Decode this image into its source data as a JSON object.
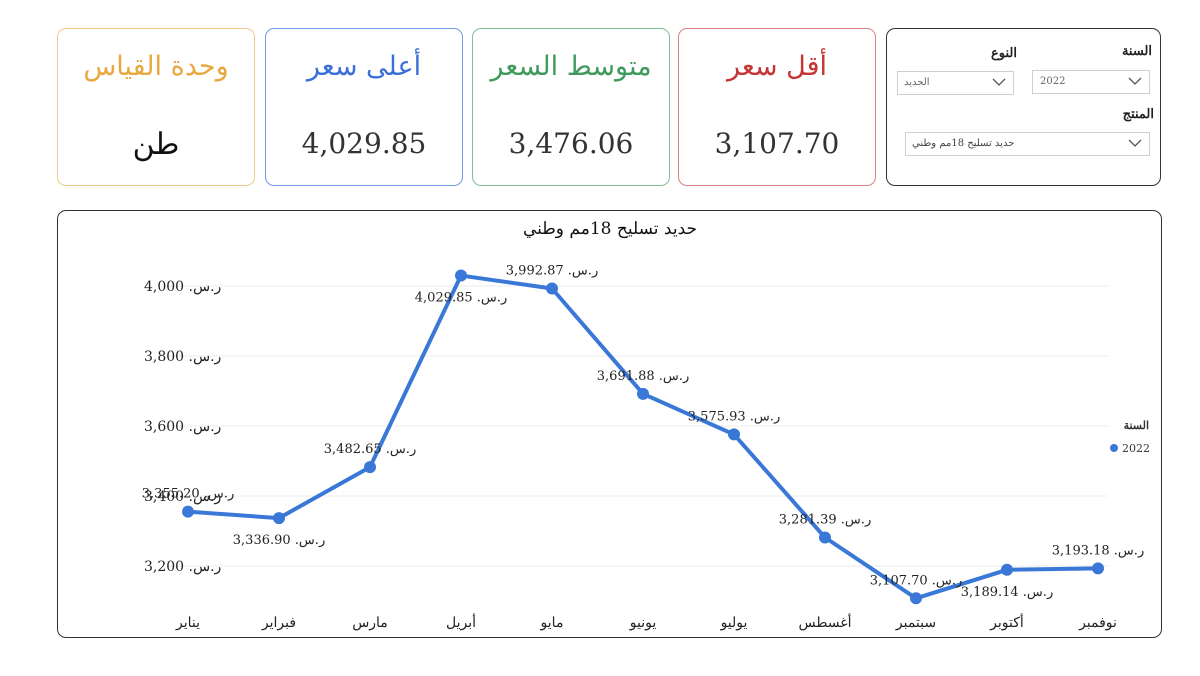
{
  "cards": {
    "unit": {
      "title": "وحدة القياس",
      "value": "طن",
      "color": "#e8a840"
    },
    "max": {
      "title": "أعلى سعر",
      "value": "4,029.85",
      "color": "#3a6fd8"
    },
    "avg": {
      "title": "متوسط السعر",
      "value": "3,476.06",
      "color": "#3f9a5c"
    },
    "min": {
      "title": "أقل سعر",
      "value": "3,107.70",
      "color": "#c43535"
    }
  },
  "filters": {
    "year_label": "السنة",
    "year_value": "2022",
    "type_label": "النوع",
    "type_value": "الحديد",
    "product_label": "المنتج",
    "product_value": "حديد تسليح 18مم وطني"
  },
  "chart_data": {
    "type": "line",
    "title": "حديد تسليح 18مم وطني",
    "categories": [
      "يناير",
      "فبراير",
      "مارس",
      "أبريل",
      "مايو",
      "يونيو",
      "يوليو",
      "أغسطس",
      "سبتمبر",
      "أكتوبر",
      "نوفمبر"
    ],
    "series": [
      {
        "name": "2022",
        "color": "#3a78d8",
        "values": [
          3355.2,
          3336.9,
          3482.65,
          4029.85,
          3992.87,
          3691.88,
          3575.93,
          3281.39,
          3107.7,
          3189.14,
          3193.18
        ]
      }
    ],
    "data_labels": [
      "ر.س. 3,355.20",
      "ر.س. 3,336.90",
      "ر.س. 3,482.65",
      "ر.س. 4,029.85",
      "ر.س. 3,992.87",
      "ر.س. 3,691.88",
      "ر.س. 3,575.93",
      "ر.س. 3,281.39",
      "ر.س. 3,107.70",
      "ر.س. 3,189.14",
      "ر.س. 3,193.18"
    ],
    "yticks": [
      3200,
      3400,
      3600,
      3800,
      4000
    ],
    "ytick_labels": [
      "ر.س. 3,200",
      "ر.س. 3,400",
      "ر.س. 3,600",
      "ر.س. 3,800",
      "ر.س. 4,000"
    ],
    "legend_title": "السنة",
    "legend_position": "right",
    "grid": true
  }
}
